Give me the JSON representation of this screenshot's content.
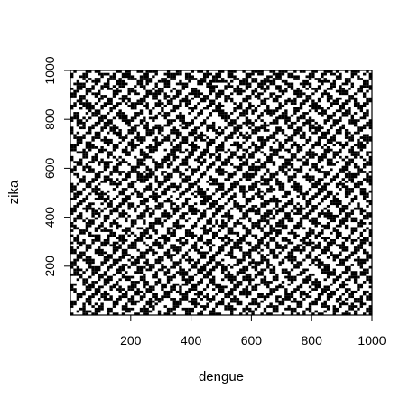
{
  "chart_data": {
    "type": "heatmap",
    "title": "",
    "xlabel": "dengue",
    "ylabel": "zika",
    "xlim": [
      0,
      1000
    ],
    "ylim": [
      0,
      1000
    ],
    "x_ticks": [
      200,
      400,
      600,
      800,
      1000
    ],
    "y_ticks": [
      200,
      400,
      600,
      800,
      1000
    ],
    "x_tick_labels": [
      "200",
      "400",
      "600",
      "800",
      "1000"
    ],
    "y_tick_labels": [
      "200",
      "400",
      "600",
      "800",
      "1000"
    ],
    "grid_resolution": 100,
    "value_levels": [
      "black",
      "white"
    ],
    "colors": {
      "foreground": "#000000",
      "background": "#ffffff"
    },
    "grid": false,
    "legend": "none"
  }
}
